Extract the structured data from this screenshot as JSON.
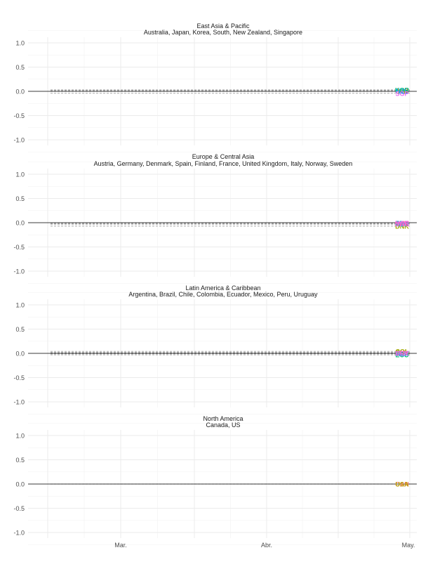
{
  "chart_data": [
    {
      "type": "line",
      "title": "East Asia & Pacific",
      "subtitle": "Australia, Japan, Korea, South, New Zealand, Singapore",
      "ylim": [
        -1.0,
        1.0
      ],
      "yticks": [
        "1.0",
        "0.5",
        "0.0",
        "-0.5",
        "-1.0"
      ],
      "grid": true,
      "series": [
        {
          "label": "AUS",
          "value": 0.02,
          "color": "#F8766D"
        },
        {
          "label": "JPN",
          "value": 0.0,
          "color": "#A3A500"
        },
        {
          "label": "KOR",
          "value": 0.03,
          "color": "#00BF7D"
        },
        {
          "label": "NZL",
          "value": 0.01,
          "color": "#00B0F6"
        },
        {
          "label": "SGP",
          "value": -0.04,
          "color": "#E76BF3"
        }
      ]
    },
    {
      "type": "line",
      "title": "Europe & Central Asia",
      "subtitle": "Austria, Germany, Denmark, Spain, Finland, France, United Kingdom, Italy, Norway, Sweden",
      "ylim": [
        -1.0,
        1.0
      ],
      "yticks": [
        "1.0",
        "0.5",
        "0.0",
        "-0.5",
        "-1.0"
      ],
      "grid": true,
      "series": [
        {
          "label": "AUT",
          "value": -0.01,
          "color": "#F8766D"
        },
        {
          "label": "DEU",
          "value": -0.02,
          "color": "#D89000"
        },
        {
          "label": "DNK",
          "value": -0.07,
          "color": "#A3A500"
        },
        {
          "label": "ESP",
          "value": -0.02,
          "color": "#39B600"
        },
        {
          "label": "FIN",
          "value": -0.03,
          "color": "#00BF7D"
        },
        {
          "label": "FRA",
          "value": -0.01,
          "color": "#00BFC4"
        },
        {
          "label": "GBR",
          "value": -0.02,
          "color": "#00B0F6"
        },
        {
          "label": "ITA",
          "value": -0.03,
          "color": "#9590FF"
        },
        {
          "label": "NOR",
          "value": -0.01,
          "color": "#E76BF3"
        },
        {
          "label": "SWE",
          "value": -0.02,
          "color": "#FF62BC"
        }
      ]
    },
    {
      "type": "line",
      "title": "Latin America & Caribbean",
      "subtitle": "Argentina, Brazil, Chile, Colombia, Ecuador, Mexico, Peru, Uruguay",
      "ylim": [
        -1.0,
        1.0
      ],
      "yticks": [
        "1.0",
        "0.5",
        "0.0",
        "-0.5",
        "-1.0"
      ],
      "grid": true,
      "series": [
        {
          "label": "ARG",
          "value": 0.01,
          "color": "#F8766D"
        },
        {
          "label": "BRA",
          "value": 0.0,
          "color": "#CD9600"
        },
        {
          "label": "CHL",
          "value": 0.02,
          "color": "#7CAE00"
        },
        {
          "label": "COL",
          "value": 0.04,
          "color": "#A3A500"
        },
        {
          "label": "ECU",
          "value": -0.03,
          "color": "#00BE67"
        },
        {
          "label": "MEX",
          "value": -0.01,
          "color": "#00A9FF"
        },
        {
          "label": "PER",
          "value": 0.0,
          "color": "#C77CFF"
        },
        {
          "label": "URY",
          "value": 0.01,
          "color": "#FF61CC"
        }
      ]
    },
    {
      "type": "line",
      "title": "North America",
      "subtitle": "Canada, US",
      "ylim": [
        -1.0,
        1.0
      ],
      "yticks": [
        "1.0",
        "0.5",
        "0.0",
        "-0.5",
        "-1.0"
      ],
      "grid": true,
      "series": [
        {
          "label": "CAN",
          "value": 0.0,
          "color": "#F8766D"
        },
        {
          "label": "USA",
          "value": 0.0,
          "color": "#B79F00"
        }
      ]
    }
  ],
  "x_axis": {
    "tick_labels": [
      "Mar.",
      "Abr.",
      "May."
    ]
  }
}
